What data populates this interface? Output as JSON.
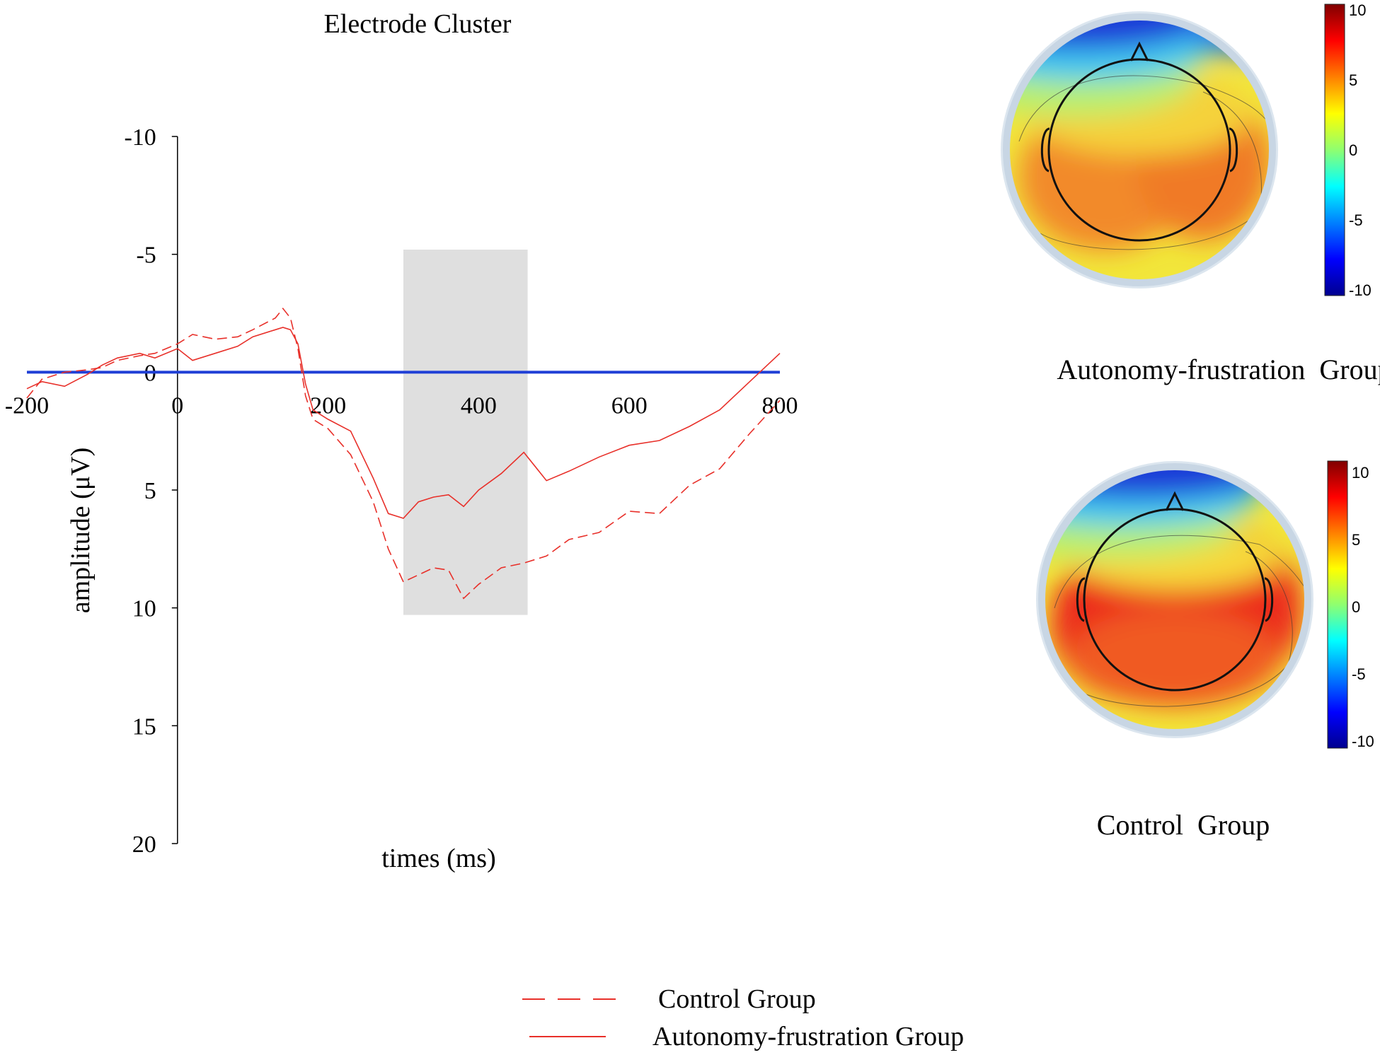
{
  "chart_data": [
    {
      "type": "line",
      "title": "Electrode Cluster",
      "xlabel": "times (ms)",
      "ylabel": "amplitude (μV)",
      "xlim": [
        -200,
        800
      ],
      "ylim": [
        -10,
        20
      ],
      "y_inverted": true,
      "xticks": [
        "-200",
        "0",
        "200",
        "400",
        "600",
        "800"
      ],
      "yticks": [
        "-10",
        "-5",
        "0",
        "5",
        "10",
        "15",
        "20"
      ],
      "shaded_window_ms": [
        300,
        465
      ],
      "shaded_window_amplitude": [
        -5.2,
        10.3
      ],
      "zero_line_color": "#1f3fd6",
      "series": [
        {
          "name": "Control Group",
          "style": "dashed",
          "color": "#e8302a",
          "x": [
            -200,
            -180,
            -150,
            -120,
            -100,
            -80,
            -50,
            -30,
            0,
            20,
            50,
            80,
            100,
            130,
            140,
            150,
            160,
            170,
            180,
            200,
            230,
            260,
            280,
            300,
            320,
            340,
            360,
            380,
            400,
            430,
            460,
            490,
            520,
            560,
            600,
            640,
            680,
            720,
            760,
            800
          ],
          "y": [
            1.1,
            0.3,
            0.0,
            -0.1,
            -0.2,
            -0.5,
            -0.7,
            -0.8,
            -1.2,
            -1.6,
            -1.4,
            -1.5,
            -1.8,
            -2.3,
            -2.7,
            -2.3,
            -1.0,
            1.0,
            2.0,
            2.4,
            3.5,
            5.5,
            7.5,
            8.9,
            8.6,
            8.3,
            8.4,
            9.6,
            9.0,
            8.3,
            8.1,
            7.8,
            7.1,
            6.8,
            5.9,
            6.0,
            4.8,
            4.1,
            2.6,
            1.2
          ]
        },
        {
          "name": "Autonomy-frustration Group",
          "style": "solid",
          "color": "#e8302a",
          "x": [
            -200,
            -180,
            -150,
            -120,
            -100,
            -80,
            -50,
            -30,
            0,
            20,
            50,
            80,
            100,
            130,
            140,
            150,
            160,
            170,
            180,
            200,
            230,
            260,
            280,
            300,
            320,
            340,
            360,
            380,
            400,
            430,
            460,
            490,
            520,
            560,
            600,
            640,
            680,
            720,
            760,
            780,
            800
          ],
          "y": [
            0.7,
            0.4,
            0.6,
            0.1,
            -0.3,
            -0.6,
            -0.8,
            -0.6,
            -1.0,
            -0.5,
            -0.8,
            -1.1,
            -1.5,
            -1.8,
            -1.9,
            -1.8,
            -1.2,
            0.5,
            1.6,
            2.0,
            2.5,
            4.5,
            6.0,
            6.2,
            5.5,
            5.3,
            5.2,
            5.7,
            5.0,
            4.3,
            3.4,
            4.6,
            4.2,
            3.6,
            3.1,
            2.9,
            2.3,
            1.6,
            0.4,
            -0.2,
            -0.8
          ]
        }
      ]
    },
    {
      "type": "heatmap",
      "title": "Autonomy-frustration  Group",
      "colorbar_ticks": [
        "10",
        "5",
        "0",
        "-5",
        "-10"
      ],
      "colorbar_range": [
        -10,
        10
      ],
      "colormap": "jet",
      "description_note": "",
      "regions": [
        {
          "location": "frontal pole",
          "value": -9
        },
        {
          "location": "frontal",
          "value": 1
        },
        {
          "location": "left central-parietal",
          "value": 6
        },
        {
          "location": "right central-parietal",
          "value": 6.5
        },
        {
          "location": "occipital",
          "value": 3
        }
      ]
    },
    {
      "type": "heatmap",
      "title": "Control  Group",
      "colorbar_ticks": [
        "10",
        "5",
        "0",
        "-5",
        "-10"
      ],
      "colorbar_range": [
        -10,
        10
      ],
      "colormap": "jet",
      "regions": [
        {
          "location": "frontal pole",
          "value": -9
        },
        {
          "location": "frontal",
          "value": 1.5
        },
        {
          "location": "left central-parietal",
          "value": 8.5
        },
        {
          "location": "right central-parietal",
          "value": 8.5
        },
        {
          "location": "occipital",
          "value": 4.5
        }
      ]
    }
  ],
  "legend": {
    "items": [
      {
        "label": "Control Group",
        "style": "dashed"
      },
      {
        "label": "Autonomy-frustration Group",
        "style": "solid"
      }
    ]
  }
}
